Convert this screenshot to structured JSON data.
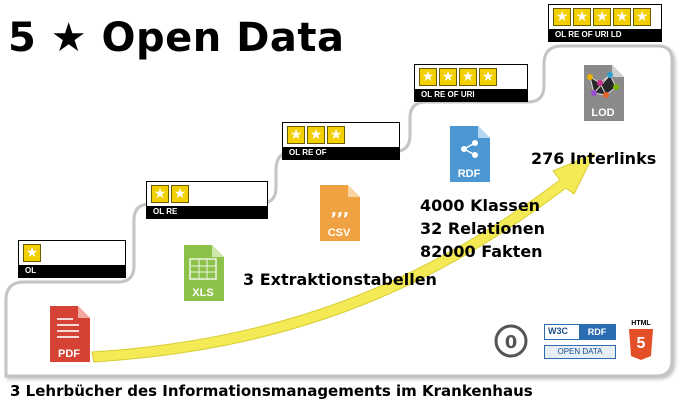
{
  "title": "5 ★ Open Data",
  "levels": [
    {
      "stars": 1,
      "labels": "OL"
    },
    {
      "stars": 2,
      "labels": "OL  RE"
    },
    {
      "stars": 3,
      "labels": "OL  RE  OF"
    },
    {
      "stars": 4,
      "labels": "OL  RE  OF  URI"
    },
    {
      "stars": 5,
      "labels": "OL  RE  OF  URI  LD"
    }
  ],
  "formats": {
    "pdf": "PDF",
    "xls": "XLS",
    "csv": "CSV",
    "rdf": "RDF",
    "lod": "LOD"
  },
  "annotations": {
    "extraction_tables": "3 Extraktionstabellen",
    "classes": "4000 Klassen",
    "relations": "32 Relationen",
    "facts": "82000 Fakten",
    "interlinks": "276 Interlinks",
    "bottom_caption": "3 Lehrbücher des Informationsmanagements  im Krankenhaus"
  },
  "logos": {
    "w3c": "W3C",
    "rdf": "RDF",
    "open_data": "OPEN DATA",
    "html": "HTML",
    "html_num": "5"
  },
  "colors": {
    "star": "#f2d000",
    "pdf": "#d64234",
    "xls": "#8cc14a",
    "csv": "#f0a243",
    "rdf": "#4b97d3",
    "lod": "#8a8a8a",
    "arrow": "#f3ea55",
    "html5": "#e34f26"
  }
}
